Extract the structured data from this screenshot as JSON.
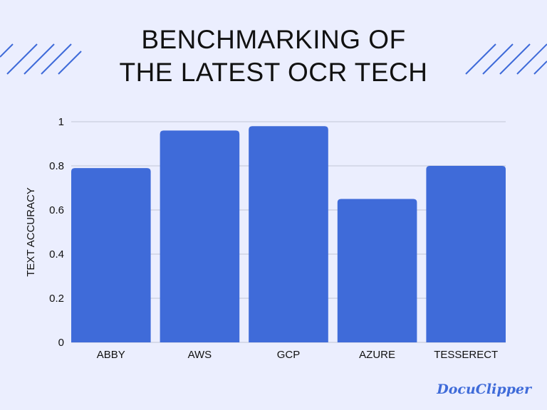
{
  "title_lines": [
    "BENCHMARKING OF",
    "THE LATEST OCR TECH"
  ],
  "logo_text": "DocuClipper",
  "colors": {
    "bar": "#3f6bd9",
    "grid": "#d0d4e4",
    "background": "#ebeefe",
    "logo": "#3f6bd9"
  },
  "chart_data": {
    "type": "bar",
    "title": "BENCHMARKING OF THE LATEST OCR TECH",
    "xlabel": "",
    "ylabel": "TEXT ACCURACY",
    "categories": [
      "ABBY",
      "AWS",
      "GCP",
      "AZURE",
      "TESSERECT"
    ],
    "values": [
      0.79,
      0.96,
      0.98,
      0.65,
      0.8
    ],
    "ylim": [
      0,
      1
    ],
    "yticks": [
      "0",
      "0.2",
      "0.4",
      "0.6",
      "0.8",
      "1"
    ],
    "grid": true
  }
}
